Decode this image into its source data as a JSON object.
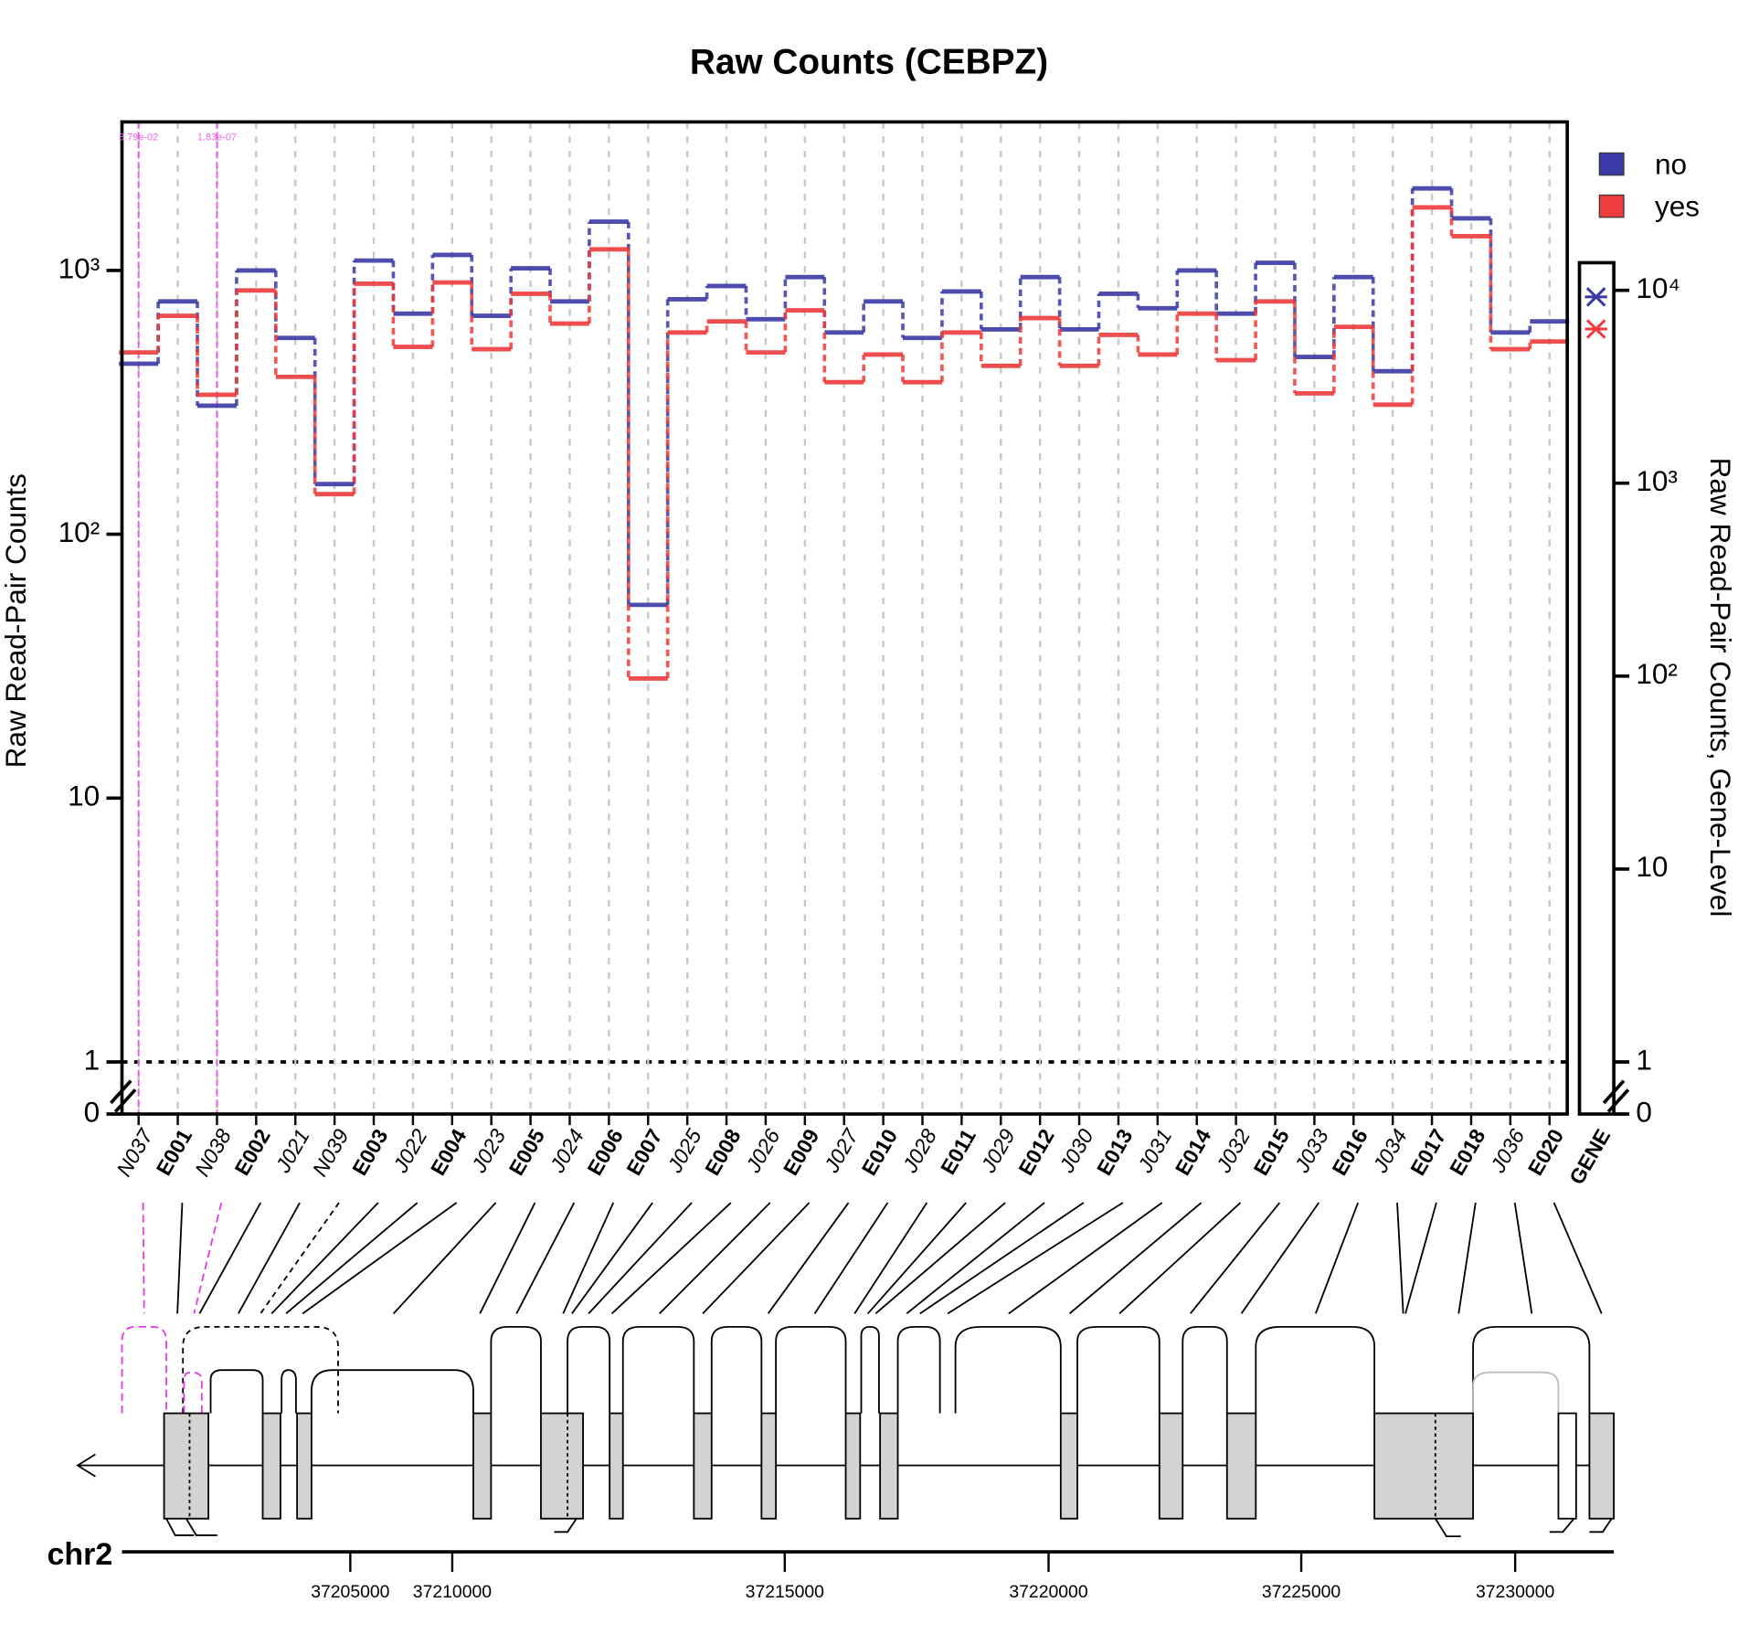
{
  "chart_data": {
    "type": "line",
    "title": "Raw Counts (CEBPZ)",
    "y_label": "Raw Read-Pair Counts",
    "y2_label": "Raw Read-Pair Counts, Gene-Level",
    "log_y": true,
    "grid": true,
    "legend": "top-right",
    "categories": [
      "N037",
      "E001",
      "N038",
      "E002",
      "J021",
      "N039",
      "E003",
      "J022",
      "E004",
      "J023",
      "E005",
      "J024",
      "E006",
      "E007",
      "J025",
      "E008",
      "J026",
      "E009",
      "J027",
      "E010",
      "J028",
      "E011",
      "J029",
      "E012",
      "J030",
      "E013",
      "J031",
      "E014",
      "J032",
      "E015",
      "J033",
      "E016",
      "J034",
      "E017",
      "E018",
      "J036",
      "E020"
    ],
    "gene_label": "GENE",
    "series": [
      {
        "name": "no",
        "color": "#3a3aa6",
        "values": [
          443,
          763,
          307,
          1000,
          555,
          155,
          1090,
          686,
          1145,
          673,
          1019,
          763,
          1530,
          54,
          778,
          873,
          653,
          944,
          582,
          763,
          555,
          832,
          598,
          944,
          598,
          816,
          719,
          1000,
          686,
          1069,
          470,
          944,
          415,
          2046,
          1575,
          582,
          641
        ],
        "gene_value": 9240
      },
      {
        "name": "yes",
        "color": "#ee3b3b",
        "values": [
          489,
          673,
          338,
          840,
          395,
          142,
          891,
          513,
          900,
          503,
          816,
          629,
          1202,
          28.4,
          582,
          641,
          489,
          706,
          377,
          480,
          377,
          582,
          435,
          660,
          435,
          570,
          480,
          686,
          457,
          763,
          342,
          611,
          310,
          1734,
          1349,
          503,
          538
        ],
        "gene_value": 6300
      }
    ],
    "ylim": [
      1,
      3655
    ],
    "yticks": [
      {
        "value": 0,
        "label": "0"
      },
      1,
      10,
      {
        "value": 100,
        "label": "10²"
      },
      {
        "value": 1000,
        "label": "10³"
      }
    ],
    "y2lim": [
      1,
      13900
    ],
    "y2ticks": [
      {
        "value": 0,
        "label": "0"
      },
      1,
      10,
      {
        "value": 100,
        "label": "10²"
      },
      {
        "value": 1000,
        "label": "10³"
      },
      {
        "value": 10000,
        "label": "10⁴"
      }
    ],
    "annotations": [
      {
        "text": "3.79e-02",
        "category": "N037"
      },
      {
        "text": "1.83e-07",
        "category": "N038"
      }
    ],
    "genome": {
      "chrom": "chr2",
      "ticks": [
        37205000,
        37210000,
        37215000,
        37220000,
        37225000,
        37230000
      ]
    }
  }
}
